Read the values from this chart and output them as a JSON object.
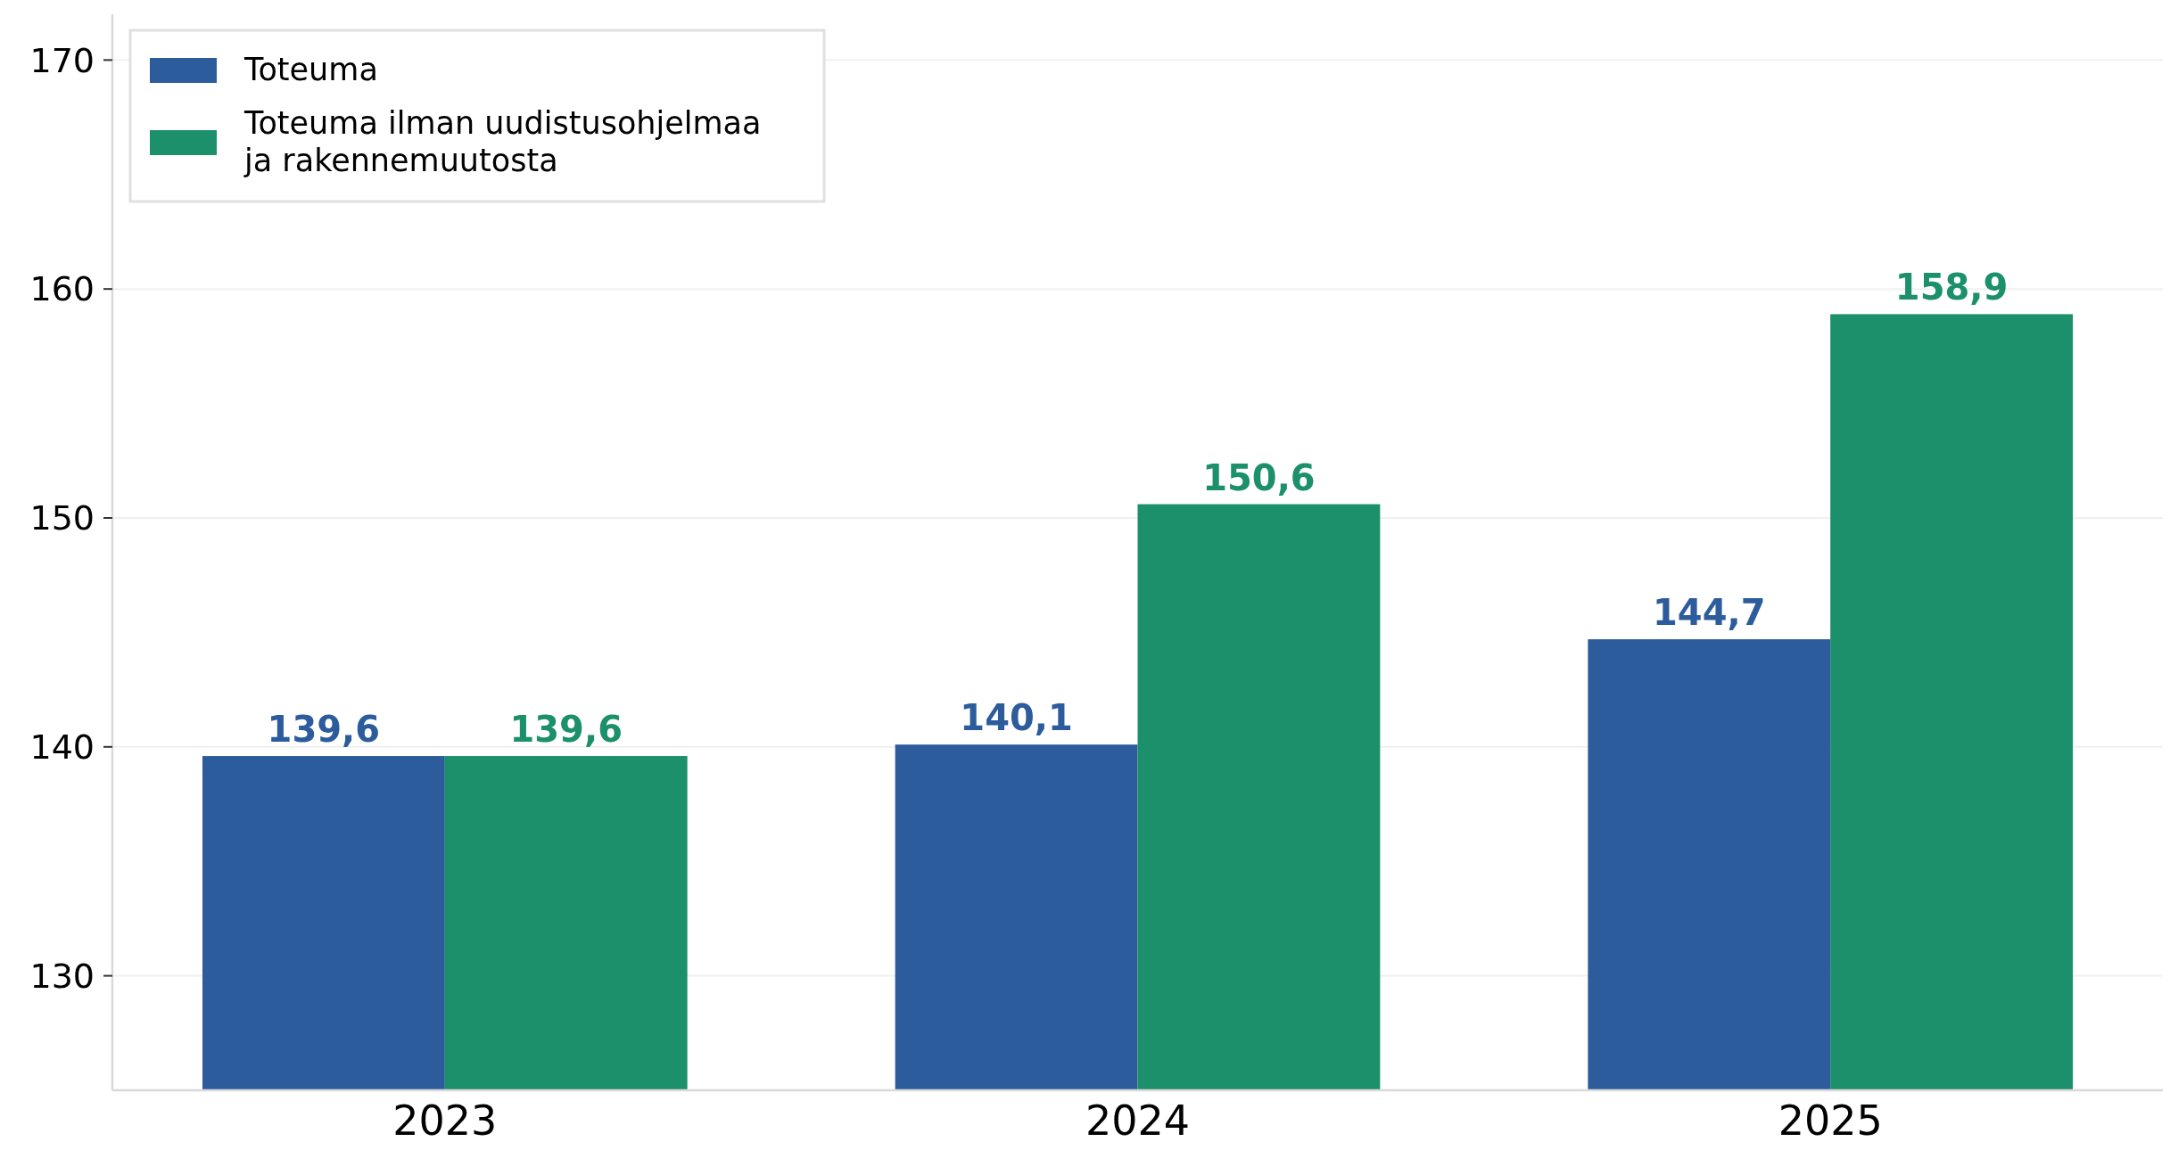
{
  "chart_data": {
    "type": "bar",
    "categories": [
      "2023",
      "2024",
      "2025"
    ],
    "series": [
      {
        "name": "Toteuma",
        "color": "#2c5c9b",
        "values": [
          139.6,
          140.1,
          144.7
        ]
      },
      {
        "name": "Toteuma ilman uudistusohjelmaa\nja rakennemuutosta",
        "color": "#1c8f6b",
        "values": [
          139.6,
          150.6,
          158.9
        ]
      }
    ],
    "value_labels": [
      [
        "139,6",
        "140,1",
        "144,7"
      ],
      [
        "139,6",
        "150,6",
        "158,9"
      ]
    ],
    "ylim": [
      125,
      172
    ],
    "yticks": [
      130,
      140,
      150,
      160,
      170
    ],
    "grid": "y",
    "legend": "top left"
  }
}
